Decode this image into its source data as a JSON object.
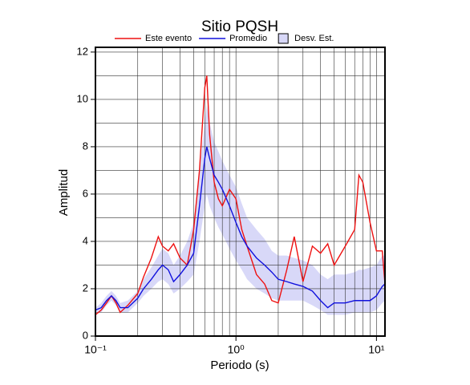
{
  "chart_data": {
    "type": "line",
    "title": "Sitio PQSH",
    "xlabel": "Periodo (s)",
    "ylabel": "Amplitud",
    "xscale": "log",
    "grid": true,
    "legend": "top",
    "x": [
      0.1,
      0.11,
      0.12,
      0.13,
      0.14,
      0.15,
      0.17,
      0.2,
      0.22,
      0.25,
      0.28,
      0.3,
      0.33,
      0.36,
      0.4,
      0.45,
      0.5,
      0.55,
      0.6,
      0.62,
      0.65,
      0.7,
      0.75,
      0.8,
      0.9,
      1.0,
      1.1,
      1.2,
      1.4,
      1.6,
      1.8,
      2.0,
      2.3,
      2.6,
      3.0,
      3.5,
      4.0,
      4.5,
      5,
      6,
      7,
      7.5,
      8,
      9,
      10,
      11,
      11.5
    ],
    "band": {
      "name": "Desv. Est.",
      "color": "#d8d8f8",
      "lower": [
        1.0,
        1.0,
        1.3,
        1.5,
        1.3,
        1.0,
        1.0,
        1.4,
        1.7,
        2.0,
        2.3,
        2.4,
        2.2,
        1.8,
        2.0,
        2.3,
        2.6,
        4.0,
        5.5,
        6.0,
        5.5,
        5.0,
        4.6,
        4.3,
        3.7,
        3.2,
        2.8,
        2.4,
        2.0,
        1.8,
        1.6,
        1.5,
        1.5,
        1.5,
        1.5,
        1.3,
        1.1,
        0.9,
        0.9,
        0.9,
        1.0,
        1.0,
        1.0,
        1.0,
        1.1,
        1.4,
        1.5
      ],
      "upper": [
        1.2,
        1.4,
        1.7,
        1.9,
        1.7,
        1.4,
        1.5,
        1.9,
        2.4,
        2.9,
        3.4,
        3.7,
        3.5,
        3.0,
        3.4,
        4.0,
        4.8,
        7.0,
        9.0,
        9.8,
        9.0,
        8.2,
        7.8,
        7.4,
        6.8,
        6.3,
        5.6,
        5.0,
        4.5,
        4.1,
        3.6,
        3.4,
        3.4,
        3.3,
        3.2,
        3.0,
        2.6,
        2.4,
        2.6,
        2.6,
        2.7,
        2.8,
        2.8,
        2.9,
        3.0,
        3.4,
        3.4
      ]
    },
    "series": [
      {
        "name": "Este evento",
        "color": "#ee1111",
        "values": [
          0.9,
          1.1,
          1.4,
          1.7,
          1.4,
          1.0,
          1.3,
          1.8,
          2.5,
          3.3,
          4.2,
          3.8,
          3.6,
          3.9,
          3.3,
          3.0,
          4.5,
          7.0,
          10.5,
          11.0,
          8.5,
          6.5,
          5.8,
          5.5,
          6.2,
          5.8,
          4.5,
          3.8,
          2.6,
          2.2,
          1.5,
          1.4,
          2.8,
          4.2,
          2.3,
          3.8,
          3.5,
          3.9,
          3.0,
          3.8,
          4.5,
          6.8,
          6.5,
          4.8,
          3.6,
          3.6,
          2.2
        ]
      },
      {
        "name": "Promedio",
        "color": "#1111dd",
        "values": [
          1.1,
          1.2,
          1.5,
          1.7,
          1.5,
          1.2,
          1.2,
          1.6,
          2.0,
          2.4,
          2.8,
          3.0,
          2.8,
          2.3,
          2.6,
          3.0,
          3.5,
          5.5,
          7.5,
          8.0,
          7.5,
          6.8,
          6.5,
          6.2,
          5.5,
          4.8,
          4.2,
          3.8,
          3.3,
          3.0,
          2.7,
          2.4,
          2.3,
          2.2,
          2.1,
          1.9,
          1.5,
          1.2,
          1.4,
          1.4,
          1.5,
          1.5,
          1.5,
          1.5,
          1.7,
          2.1,
          2.2
        ]
      }
    ],
    "xlim": [
      0.1,
      11.5
    ],
    "ylim": [
      0,
      12.2
    ],
    "xticks": [
      {
        "value": 0.1,
        "label": "10⁻¹"
      },
      {
        "value": 1,
        "label": "10⁰"
      },
      {
        "value": 10,
        "label": "10¹"
      }
    ],
    "xminor": [
      0.2,
      0.3,
      0.4,
      0.5,
      0.6,
      0.7,
      0.8,
      0.9,
      2,
      3,
      4,
      5,
      6,
      7,
      8,
      9
    ],
    "yticks": [
      0,
      2,
      4,
      6,
      8,
      10,
      12
    ],
    "yminor": [
      1,
      3,
      5,
      7,
      9,
      11
    ]
  }
}
